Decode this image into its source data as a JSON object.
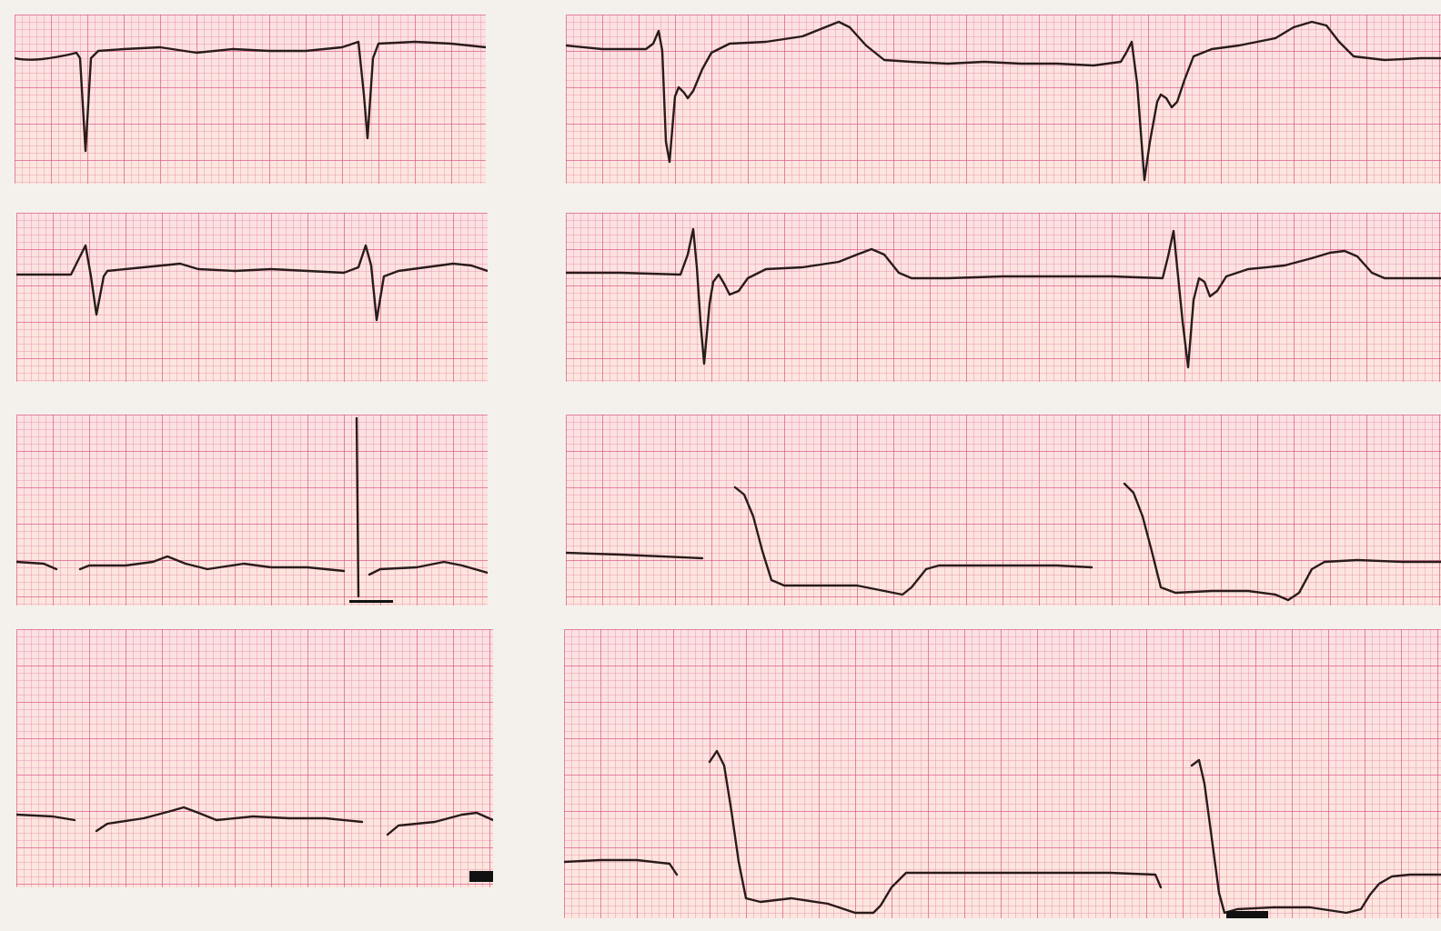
{
  "image": {
    "subject": "electrocardiogram-strips",
    "colors": {
      "background": "#f4f1ec",
      "paper": "#fbe1e1",
      "grid_major": "#d65082",
      "trace": "#2a1b1b"
    }
  }
}
